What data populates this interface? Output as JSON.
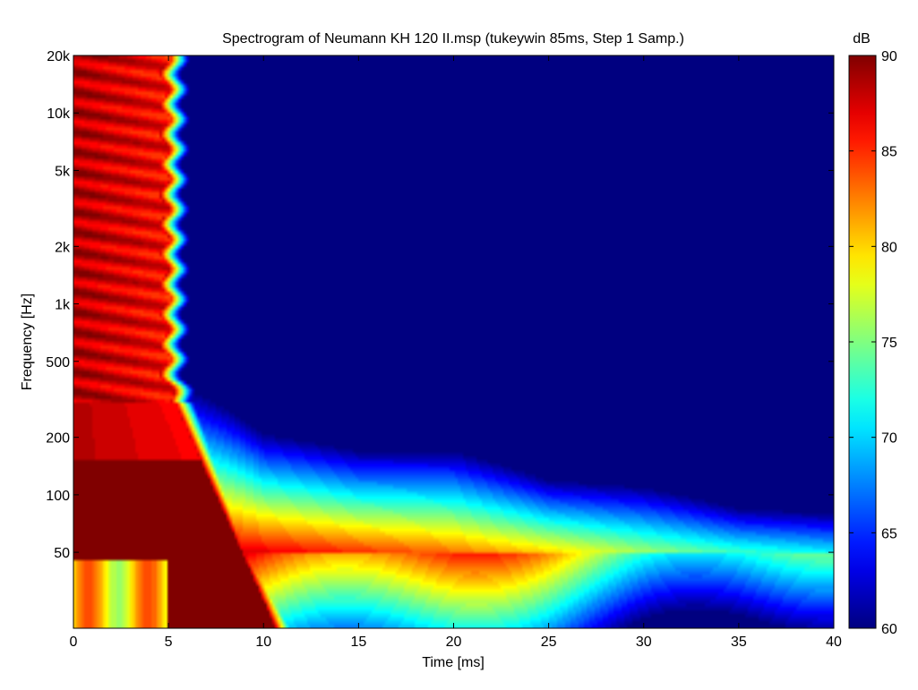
{
  "chart_data": {
    "type": "heatmap",
    "title": "Spectrogram of Neumann KH 120 II.msp (tukeywin 85ms, Step 1 Samp.)",
    "xlabel": "Time [ms]",
    "ylabel": "Frequency [Hz]",
    "xlim": [
      0,
      40
    ],
    "ylim": [
      20,
      20000
    ],
    "yscale": "log",
    "x_ticks": [
      0,
      5,
      10,
      15,
      20,
      25,
      30,
      35,
      40
    ],
    "x_tick_labels": [
      "0",
      "5",
      "10",
      "15",
      "20",
      "25",
      "30",
      "35",
      "40"
    ],
    "y_ticks": [
      50,
      100,
      200,
      500,
      1000,
      2000,
      5000,
      10000,
      20000
    ],
    "y_tick_labels": [
      "50",
      "100",
      "200",
      "500",
      "1k",
      "2k",
      "5k",
      "10k",
      "20k"
    ],
    "colorbar": {
      "label": "dB",
      "min": 60,
      "max": 90,
      "ticks": [
        60,
        65,
        70,
        75,
        80,
        85,
        90
      ],
      "tick_labels": [
        "60",
        "65",
        "70",
        "75",
        "80",
        "85",
        "90"
      ],
      "colormap": "jet"
    },
    "z_levels_approx": {
      "direct_sound_edge_ms_above_500Hz": 4.8,
      "peak_level_dB_low_freq_0_to_5ms": 90,
      "ridge_50Hz": [
        {
          "t": 0,
          "db": 90
        },
        {
          "t": 5,
          "db": 89
        },
        {
          "t": 10,
          "db": 87
        },
        {
          "t": 15,
          "db": 85
        },
        {
          "t": 20,
          "db": 83
        },
        {
          "t": 25,
          "db": 80
        },
        {
          "t": 30,
          "db": 76
        },
        {
          "t": 35,
          "db": 73
        },
        {
          "t": 40,
          "db": 71
        }
      ],
      "decay_edge_60dB_Hz": [
        {
          "t": 5,
          "f": 400
        },
        {
          "t": 10,
          "f": 210
        },
        {
          "t": 15,
          "f": 170
        },
        {
          "t": 20,
          "f": 170
        },
        {
          "t": 25,
          "f": 120
        },
        {
          "t": 30,
          "f": 110
        },
        {
          "t": 35,
          "f": 85
        },
        {
          "t": 40,
          "f": 80
        }
      ]
    }
  }
}
